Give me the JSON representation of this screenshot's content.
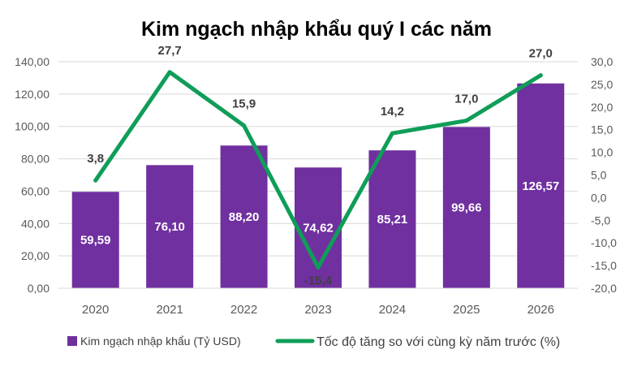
{
  "chart_data": {
    "type": "bar",
    "title": "Kim ngạch nhập khẩu quý I các năm",
    "categories": [
      "2020",
      "2021",
      "2022",
      "2023",
      "2024",
      "2025",
      "2026"
    ],
    "series": [
      {
        "name": "Kim ngạch nhập khẩu (Tỷ USD)",
        "type": "bar",
        "axis": "left",
        "values": [
          59.59,
          76.1,
          88.2,
          74.62,
          85.21,
          99.66,
          126.57
        ],
        "labels": [
          "59,59",
          "76,10",
          "88,20",
          "74,62",
          "85,21",
          "99,66",
          "126,57"
        ],
        "color": "#7030a0"
      },
      {
        "name": "Tốc độ tăng so với cùng kỳ năm trước (%)",
        "type": "line",
        "axis": "right",
        "values": [
          3.8,
          27.7,
          15.9,
          -15.4,
          14.2,
          17.0,
          27.0
        ],
        "labels": [
          "3,8",
          "27,7",
          "15,9",
          "-15,4",
          "14,2",
          "17,0",
          "27,0"
        ],
        "color": "#0f9d58"
      }
    ],
    "y_left": {
      "ylim": [
        0,
        140
      ],
      "ticks": [
        "0,00",
        "20,00",
        "40,00",
        "60,00",
        "80,00",
        "100,00",
        "120,00",
        "140,00"
      ]
    },
    "y_right": {
      "ylim": [
        -20,
        30
      ],
      "ticks": [
        "-20,0",
        "-15,0",
        "-10,0",
        "-5,0",
        "0,0",
        "5,0",
        "10,0",
        "15,0",
        "20,0",
        "25,0",
        "30,0"
      ]
    },
    "grid": true,
    "legend": "bottom"
  }
}
